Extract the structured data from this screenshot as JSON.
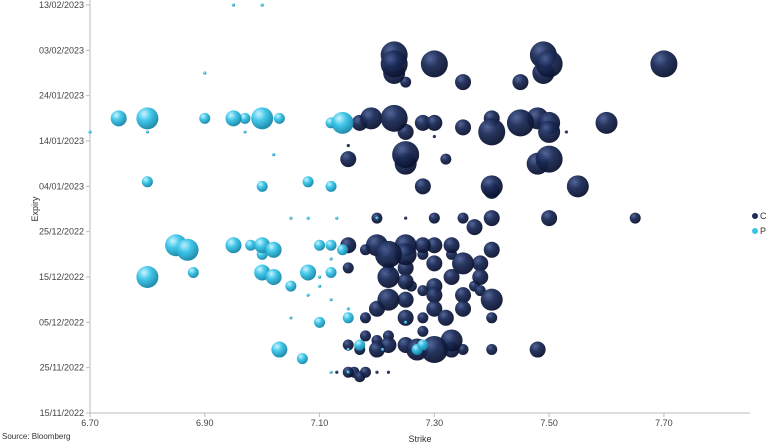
{
  "source": "Source: Bloomberg",
  "colors": {
    "C": "#1b2a56",
    "P": "#38c4e8",
    "axis": "#bbbbbb"
  },
  "chart_data": {
    "type": "scatter",
    "subtype": "bubble",
    "xlabel": "Strike",
    "ylabel": "Expiry",
    "xlim": [
      6.7,
      7.85
    ],
    "ylim": [
      "15/11/2022",
      "13/02/2023"
    ],
    "x_ticks": [
      "6.70",
      "6.90",
      "7.10",
      "7.30",
      "7.50",
      "7.70"
    ],
    "y_ticks": [
      "15/11/2022",
      "25/11/2022",
      "05/12/2022",
      "15/12/2022",
      "25/12/2022",
      "04/01/2023",
      "14/01/2023",
      "24/01/2023",
      "03/02/2023",
      "13/02/2023"
    ],
    "grid": false,
    "legend": "right",
    "series": [
      {
        "name": "C",
        "points": [
          [
            7.23,
            "02/02/2023",
            5
          ],
          [
            7.23,
            "31/01/2023",
            5
          ],
          [
            7.23,
            "29/01/2023",
            4
          ],
          [
            7.3,
            "31/01/2023",
            5
          ],
          [
            7.49,
            "02/02/2023",
            5
          ],
          [
            7.5,
            "31/01/2023",
            5
          ],
          [
            7.49,
            "29/01/2023",
            4
          ],
          [
            7.7,
            "31/01/2023",
            5
          ],
          [
            7.35,
            "27/01/2023",
            3
          ],
          [
            7.45,
            "27/01/2023",
            3
          ],
          [
            7.25,
            "27/01/2023",
            2
          ],
          [
            7.19,
            "19/01/2023",
            4
          ],
          [
            7.23,
            "19/01/2023",
            5
          ],
          [
            7.28,
            "18/01/2023",
            3
          ],
          [
            7.3,
            "18/01/2023",
            3
          ],
          [
            7.4,
            "19/01/2023",
            3
          ],
          [
            7.35,
            "17/01/2023",
            3
          ],
          [
            7.4,
            "16/01/2023",
            5
          ],
          [
            7.45,
            "18/01/2023",
            5
          ],
          [
            7.48,
            "19/01/2023",
            4
          ],
          [
            7.5,
            "18/01/2023",
            4
          ],
          [
            7.5,
            "16/01/2023",
            4
          ],
          [
            7.6,
            "18/01/2023",
            4
          ],
          [
            7.17,
            "18/01/2023",
            3
          ],
          [
            7.25,
            "16/01/2023",
            3
          ],
          [
            7.53,
            "16/01/2023",
            1
          ],
          [
            7.3,
            "15/01/2023",
            1
          ],
          [
            7.25,
            "11/01/2023",
            5
          ],
          [
            7.25,
            "09/01/2023",
            4
          ],
          [
            7.5,
            "10/01/2023",
            5
          ],
          [
            7.48,
            "09/01/2023",
            4
          ],
          [
            7.15,
            "10/01/2023",
            3
          ],
          [
            7.32,
            "10/01/2023",
            2
          ],
          [
            7.15,
            "13/01/2023",
            1
          ],
          [
            7.4,
            "04/01/2023",
            4
          ],
          [
            7.55,
            "04/01/2023",
            4
          ],
          [
            7.28,
            "04/01/2023",
            3
          ],
          [
            7.4,
            "03/01/2023",
            3
          ],
          [
            7.2,
            "28/12/2022",
            2
          ],
          [
            7.3,
            "28/12/2022",
            2
          ],
          [
            7.35,
            "28/12/2022",
            2
          ],
          [
            7.4,
            "28/12/2022",
            3
          ],
          [
            7.5,
            "28/12/2022",
            3
          ],
          [
            7.65,
            "28/12/2022",
            2
          ],
          [
            7.25,
            "28/12/2022",
            1
          ],
          [
            7.37,
            "26/12/2022",
            3
          ],
          [
            7.2,
            "22/12/2022",
            4
          ],
          [
            7.25,
            "22/12/2022",
            4
          ],
          [
            7.3,
            "22/12/2022",
            3
          ],
          [
            7.33,
            "22/12/2022",
            3
          ],
          [
            7.28,
            "22/12/2022",
            3
          ],
          [
            7.15,
            "22/12/2022",
            3
          ],
          [
            7.22,
            "20/12/2022",
            5
          ],
          [
            7.25,
            "20/12/2022",
            4
          ],
          [
            7.35,
            "18/12/2022",
            4
          ],
          [
            7.38,
            "18/12/2022",
            3
          ],
          [
            7.3,
            "18/12/2022",
            3
          ],
          [
            7.25,
            "17/12/2022",
            3
          ],
          [
            7.4,
            "21/12/2022",
            3
          ],
          [
            7.18,
            "21/12/2022",
            2
          ],
          [
            7.22,
            "15/12/2022",
            4
          ],
          [
            7.25,
            "14/12/2022",
            3
          ],
          [
            7.38,
            "15/12/2022",
            3
          ],
          [
            7.33,
            "15/12/2022",
            3
          ],
          [
            7.3,
            "13/12/2022",
            3
          ],
          [
            7.4,
            "10/12/2022",
            4
          ],
          [
            7.35,
            "11/12/2022",
            3
          ],
          [
            7.3,
            "11/12/2022",
            3
          ],
          [
            7.22,
            "10/12/2022",
            4
          ],
          [
            7.25,
            "10/12/2022",
            3
          ],
          [
            7.2,
            "08/12/2022",
            3
          ],
          [
            7.3,
            "08/12/2022",
            3
          ],
          [
            7.35,
            "08/12/2022",
            3
          ],
          [
            7.32,
            "06/12/2022",
            3
          ],
          [
            7.4,
            "06/12/2022",
            2
          ],
          [
            7.25,
            "06/12/2022",
            3
          ],
          [
            7.18,
            "06/12/2022",
            2
          ],
          [
            7.28,
            "06/12/2022",
            2
          ],
          [
            7.33,
            "01/12/2022",
            4
          ],
          [
            7.3,
            "29/11/2022",
            5
          ],
          [
            7.27,
            "29/11/2022",
            4
          ],
          [
            7.25,
            "30/11/2022",
            3
          ],
          [
            7.22,
            "30/11/2022",
            3
          ],
          [
            7.2,
            "29/11/2022",
            3
          ],
          [
            7.15,
            "30/11/2022",
            2
          ],
          [
            7.17,
            "29/11/2022",
            2
          ],
          [
            7.33,
            "29/11/2022",
            3
          ],
          [
            7.35,
            "29/11/2022",
            2
          ],
          [
            7.4,
            "29/11/2022",
            2
          ],
          [
            7.48,
            "29/11/2022",
            3
          ],
          [
            7.28,
            "03/12/2022",
            2
          ],
          [
            7.22,
            "02/12/2022",
            2
          ],
          [
            7.18,
            "02/12/2022",
            2
          ],
          [
            7.2,
            "01/12/2022",
            2
          ],
          [
            7.16,
            "24/11/2022",
            2
          ],
          [
            7.18,
            "24/11/2022",
            2
          ],
          [
            7.15,
            "24/11/2022",
            2
          ],
          [
            7.2,
            "24/11/2022",
            1
          ],
          [
            7.13,
            "24/11/2022",
            1
          ],
          [
            7.17,
            "23/11/2022",
            2
          ],
          [
            7.22,
            "24/11/2022",
            1
          ],
          [
            7.26,
            "13/12/2022",
            2
          ],
          [
            7.37,
            "13/12/2022",
            2
          ],
          [
            7.28,
            "12/12/2022",
            2
          ],
          [
            7.38,
            "12/12/2022",
            2
          ],
          [
            7.15,
            "17/12/2022",
            2
          ],
          [
            7.22,
            "17/12/2022",
            2
          ],
          [
            7.28,
            "20/12/2022",
            2
          ],
          [
            7.33,
            "20/12/2022",
            2
          ]
        ]
      },
      {
        "name": "P",
        "points": [
          [
            6.75,
            "19/01/2023",
            3
          ],
          [
            6.8,
            "19/01/2023",
            4
          ],
          [
            6.9,
            "19/01/2023",
            2
          ],
          [
            6.95,
            "19/01/2023",
            3
          ],
          [
            6.97,
            "19/01/2023",
            2
          ],
          [
            7.0,
            "19/01/2023",
            4
          ],
          [
            7.03,
            "19/01/2023",
            2
          ],
          [
            7.14,
            "18/01/2023",
            4
          ],
          [
            7.12,
            "18/01/2023",
            2
          ],
          [
            7.13,
            "17/01/2023",
            1
          ],
          [
            6.7,
            "16/01/2023",
            1
          ],
          [
            6.8,
            "16/01/2023",
            1
          ],
          [
            6.9,
            "29/01/2023",
            1
          ],
          [
            7.02,
            "11/01/2023",
            1
          ],
          [
            6.8,
            "05/01/2023",
            2
          ],
          [
            6.97,
            "16/01/2023",
            1
          ],
          [
            7.0,
            "04/01/2023",
            2
          ],
          [
            7.08,
            "05/01/2023",
            2
          ],
          [
            7.12,
            "04/01/2023",
            2
          ],
          [
            7.13,
            "28/12/2022",
            1
          ],
          [
            7.05,
            "28/12/2022",
            1
          ],
          [
            7.08,
            "28/12/2022",
            1
          ],
          [
            7.2,
            "28/12/2022",
            1
          ],
          [
            6.85,
            "22/12/2022",
            4
          ],
          [
            6.87,
            "21/12/2022",
            4
          ],
          [
            6.95,
            "22/12/2022",
            3
          ],
          [
            6.98,
            "22/12/2022",
            2
          ],
          [
            7.0,
            "22/12/2022",
            3
          ],
          [
            7.02,
            "21/12/2022",
            3
          ],
          [
            7.0,
            "20/12/2022",
            2
          ],
          [
            7.1,
            "22/12/2022",
            2
          ],
          [
            7.12,
            "22/12/2022",
            2
          ],
          [
            7.14,
            "21/12/2022",
            2
          ],
          [
            7.12,
            "19/12/2022",
            1
          ],
          [
            6.8,
            "15/12/2022",
            4
          ],
          [
            6.88,
            "16/12/2022",
            2
          ],
          [
            7.0,
            "16/12/2022",
            3
          ],
          [
            7.02,
            "15/12/2022",
            3
          ],
          [
            7.08,
            "16/12/2022",
            3
          ],
          [
            7.12,
            "16/12/2022",
            2
          ],
          [
            7.05,
            "13/12/2022",
            2
          ],
          [
            7.1,
            "13/12/2022",
            1
          ],
          [
            7.08,
            "11/12/2022",
            1
          ],
          [
            7.12,
            "10/12/2022",
            1
          ],
          [
            7.15,
            "08/12/2022",
            1
          ],
          [
            7.05,
            "06/12/2022",
            1
          ],
          [
            7.1,
            "05/12/2022",
            2
          ],
          [
            7.15,
            "06/12/2022",
            2
          ],
          [
            7.25,
            "05/12/2022",
            1
          ],
          [
            7.03,
            "29/11/2022",
            3
          ],
          [
            7.07,
            "27/11/2022",
            2
          ],
          [
            7.15,
            "29/11/2022",
            1
          ],
          [
            7.17,
            "30/11/2022",
            2
          ],
          [
            7.27,
            "29/11/2022",
            2
          ],
          [
            7.28,
            "30/11/2022",
            2
          ],
          [
            7.21,
            "29/11/2022",
            1
          ],
          [
            7.15,
            "24/11/2022",
            1
          ],
          [
            7.12,
            "24/11/2022",
            1
          ],
          [
            6.95,
            "13/02/2023",
            1
          ],
          [
            7.0,
            "13/02/2023",
            1
          ],
          [
            7.1,
            "15/12/2022",
            1
          ]
        ]
      }
    ]
  }
}
